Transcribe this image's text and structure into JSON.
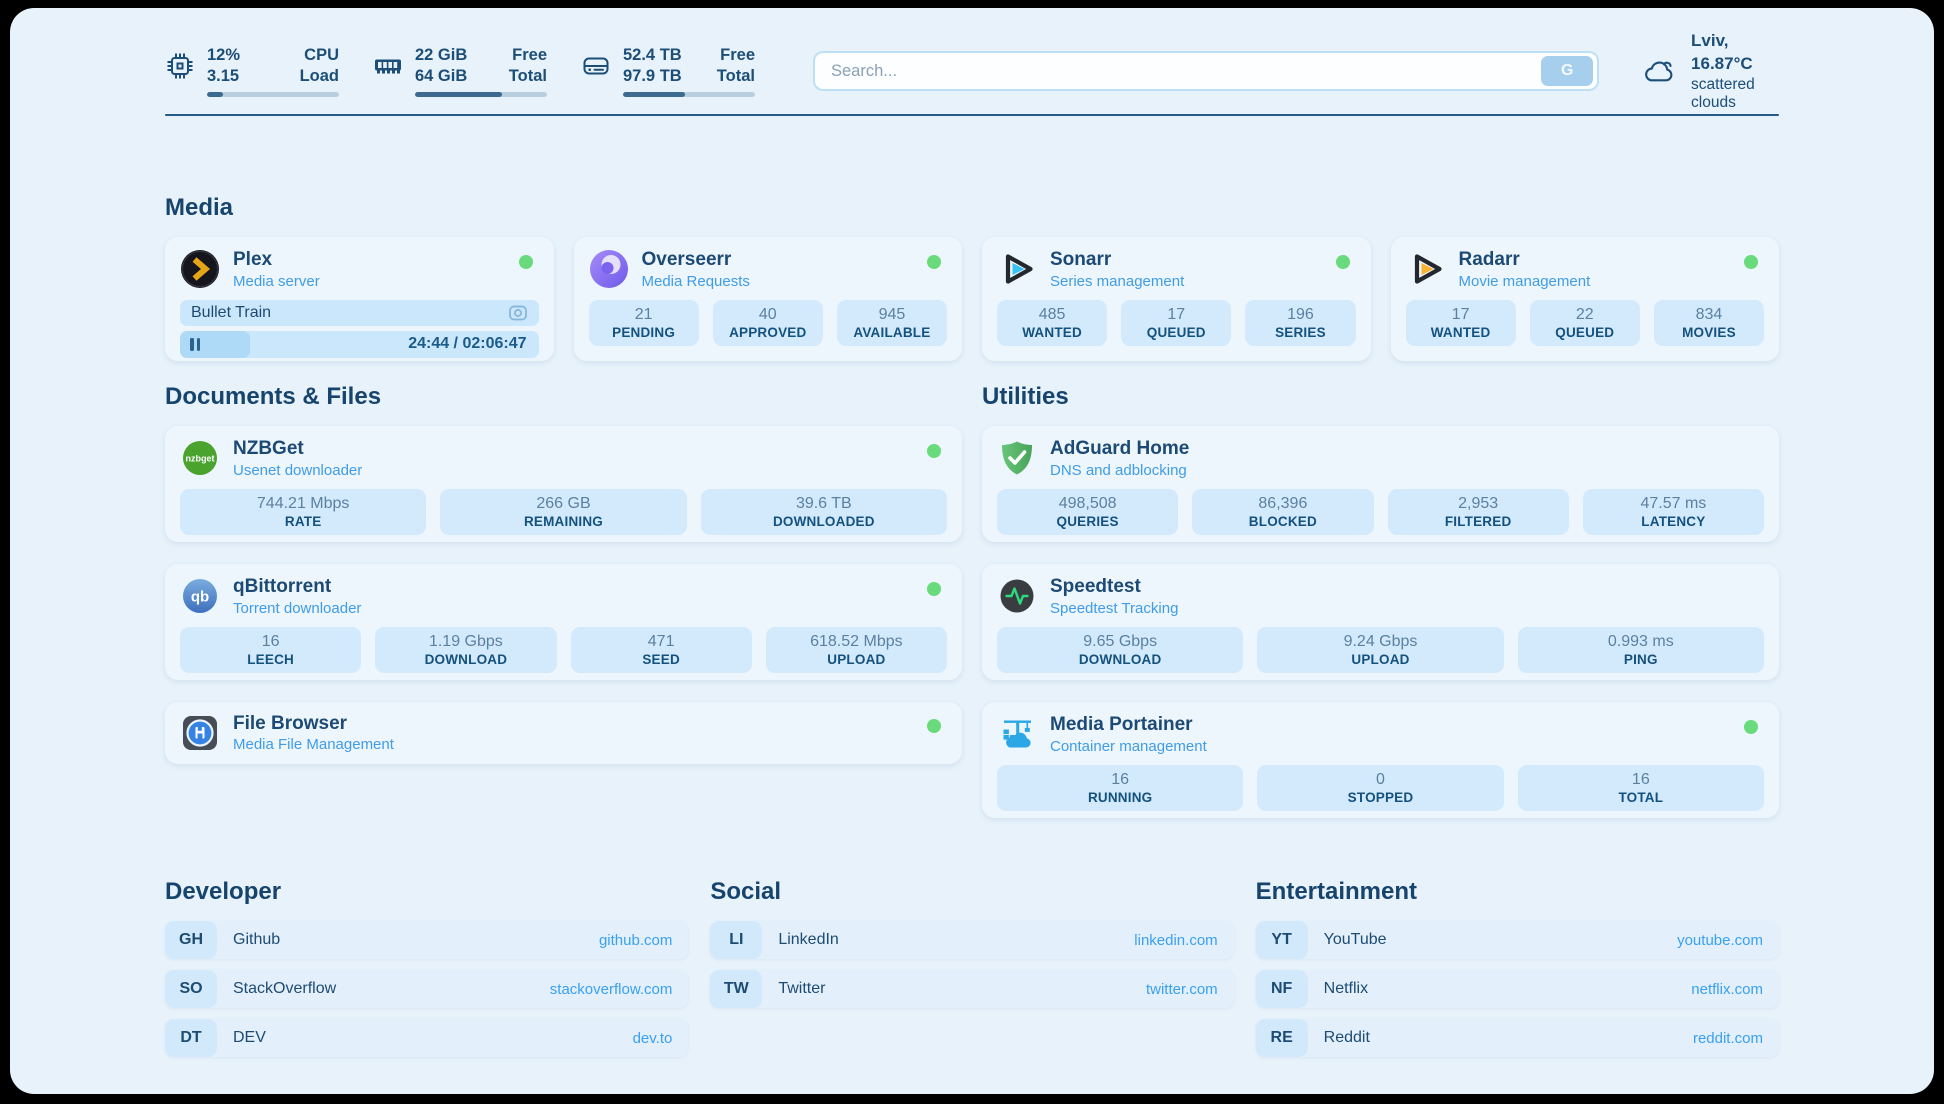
{
  "header": {
    "metrics": [
      {
        "name": "cpu",
        "values": [
          "12%",
          "3.15"
        ],
        "labels": [
          "CPU",
          "Load"
        ],
        "progress": 12
      },
      {
        "name": "ram",
        "values": [
          "22 GiB",
          "64 GiB"
        ],
        "labels": [
          "Free",
          "Total"
        ],
        "progress": 66
      },
      {
        "name": "disk",
        "values": [
          "52.4 TB",
          "97.9 TB"
        ],
        "labels": [
          "Free",
          "Total"
        ],
        "progress": 47
      }
    ],
    "search": {
      "placeholder": "Search...",
      "engine_button": "G"
    },
    "weather": {
      "location_temp": "Lviv, 16.87°C",
      "condition": "scattered clouds"
    }
  },
  "media": {
    "title": "Media",
    "plex": {
      "name": "Plex",
      "subtitle": "Media server",
      "now_playing": "Bullet Train",
      "time_display": "24:44 / 02:06:47",
      "progress": 19.5,
      "status": "online"
    },
    "overseerr": {
      "name": "Overseerr",
      "subtitle": "Media Requests",
      "status": "online",
      "stats": [
        {
          "value": "21",
          "label": "PENDING"
        },
        {
          "value": "40",
          "label": "APPROVED"
        },
        {
          "value": "945",
          "label": "AVAILABLE"
        }
      ]
    },
    "sonarr": {
      "name": "Sonarr",
      "subtitle": "Series management",
      "status": "online",
      "stats": [
        {
          "value": "485",
          "label": "WANTED"
        },
        {
          "value": "17",
          "label": "QUEUED"
        },
        {
          "value": "196",
          "label": "SERIES"
        }
      ]
    },
    "radarr": {
      "name": "Radarr",
      "subtitle": "Movie management",
      "status": "online",
      "stats": [
        {
          "value": "17",
          "label": "WANTED"
        },
        {
          "value": "22",
          "label": "QUEUED"
        },
        {
          "value": "834",
          "label": "MOVIES"
        }
      ]
    }
  },
  "documents": {
    "title": "Documents & Files",
    "nzbget": {
      "name": "NZBGet",
      "subtitle": "Usenet downloader",
      "status": "online",
      "icon_text": "nzbget",
      "stats": [
        {
          "value": "744.21 Mbps",
          "label": "RATE"
        },
        {
          "value": "266 GB",
          "label": "REMAINING"
        },
        {
          "value": "39.6 TB",
          "label": "DOWNLOADED"
        }
      ]
    },
    "qbittorrent": {
      "name": "qBittorrent",
      "subtitle": "Torrent downloader",
      "status": "online",
      "icon_text": "qb",
      "stats": [
        {
          "value": "16",
          "label": "LEECH"
        },
        {
          "value": "1.19 Gbps",
          "label": "DOWNLOAD"
        },
        {
          "value": "471",
          "label": "SEED"
        },
        {
          "value": "618.52 Mbps",
          "label": "UPLOAD"
        }
      ]
    },
    "filebrowser": {
      "name": "File Browser",
      "subtitle": "Media File Management",
      "status": "online"
    }
  },
  "utilities": {
    "title": "Utilities",
    "adguard": {
      "name": "AdGuard Home",
      "subtitle": "DNS and adblocking",
      "stats": [
        {
          "value": "498,508",
          "label": "QUERIES"
        },
        {
          "value": "86,396",
          "label": "BLOCKED"
        },
        {
          "value": "2,953",
          "label": "FILTERED"
        },
        {
          "value": "47.57 ms",
          "label": "LATENCY"
        }
      ]
    },
    "speedtest": {
      "name": "Speedtest",
      "subtitle": "Speedtest Tracking",
      "stats": [
        {
          "value": "9.65 Gbps",
          "label": "DOWNLOAD"
        },
        {
          "value": "9.24 Gbps",
          "label": "UPLOAD"
        },
        {
          "value": "0.993 ms",
          "label": "PING"
        }
      ]
    },
    "portainer": {
      "name": "Media Portainer",
      "subtitle": "Container management",
      "status": "online",
      "stats": [
        {
          "value": "16",
          "label": "RUNNING"
        },
        {
          "value": "0",
          "label": "STOPPED"
        },
        {
          "value": "16",
          "label": "TOTAL"
        }
      ]
    }
  },
  "links": {
    "developer": {
      "title": "Developer",
      "items": [
        {
          "abbr": "GH",
          "name": "Github",
          "url": "github.com"
        },
        {
          "abbr": "SO",
          "name": "StackOverflow",
          "url": "stackoverflow.com"
        },
        {
          "abbr": "DT",
          "name": "DEV",
          "url": "dev.to"
        }
      ]
    },
    "social": {
      "title": "Social",
      "items": [
        {
          "abbr": "LI",
          "name": "LinkedIn",
          "url": "linkedin.com"
        },
        {
          "abbr": "TW",
          "name": "Twitter",
          "url": "twitter.com"
        }
      ]
    },
    "entertainment": {
      "title": "Entertainment",
      "items": [
        {
          "abbr": "YT",
          "name": "YouTube",
          "url": "youtube.com"
        },
        {
          "abbr": "NF",
          "name": "Netflix",
          "url": "netflix.com"
        },
        {
          "abbr": "RE",
          "name": "Reddit",
          "url": "reddit.com"
        }
      ]
    }
  },
  "colors": {
    "accent_navy": "#1d4e77",
    "subtitle_blue": "#3f9ce8",
    "status_green": "#69db7c",
    "link_blue": "#39a0f2"
  }
}
